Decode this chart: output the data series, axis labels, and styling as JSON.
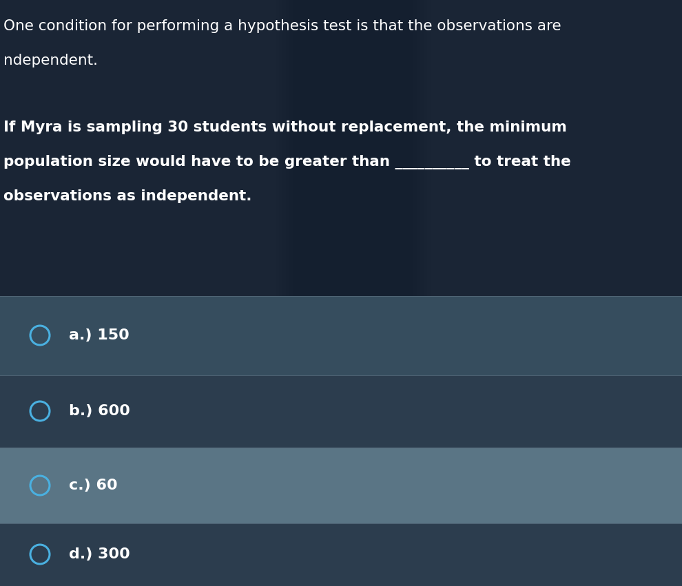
{
  "bg_color_top": "#1a2535",
  "bg_color_mid": "#243040",
  "bg_color_options_dark": "#2d3d4e",
  "bg_color_options_light": "#4a6070",
  "separator_color": "#5a7080",
  "text_color": "#ffffff",
  "circle_color": "#4ab0e0",
  "title_line1": "One condition for performing a hypothesis test is that the observations are",
  "title_line2": "ndependent.",
  "body_line1": "If Myra is sampling 30 students without replacement, the minimum",
  "body_line2": "population size would have to be greater than __________ to treat the",
  "body_line3": "observations as independent.",
  "options": [
    "a.) 150",
    "b.) 600",
    "c.) 60",
    "d.) 300"
  ],
  "title_fontsize": 15.5,
  "body_fontsize": 15.5,
  "option_fontsize": 16
}
